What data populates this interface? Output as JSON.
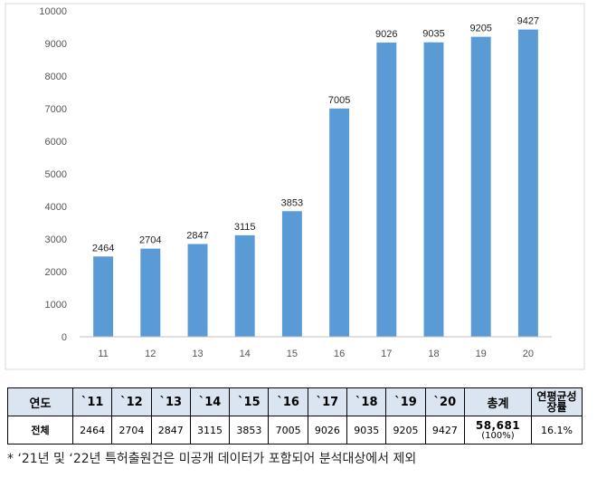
{
  "chart_data": {
    "type": "bar",
    "categories": [
      "11",
      "12",
      "13",
      "14",
      "15",
      "16",
      "17",
      "18",
      "19",
      "20"
    ],
    "values": [
      2464,
      2704,
      2847,
      3115,
      3853,
      7005,
      9026,
      9035,
      9205,
      9427
    ],
    "ylim": [
      0,
      10000
    ],
    "yticks": [
      0,
      1000,
      2000,
      3000,
      4000,
      5000,
      6000,
      7000,
      8000,
      9000,
      10000
    ],
    "grid": false,
    "bar_color": "#5b9bd5"
  },
  "table": {
    "header": {
      "label": "연도",
      "years": [
        "`11",
        "`12",
        "`13",
        "`14",
        "`15",
        "`16",
        "`17",
        "`18",
        "`19",
        "`20"
      ],
      "total": "총계",
      "growth": "연평균성장률"
    },
    "row": {
      "label": "전체",
      "values": [
        "2464",
        "2704",
        "2847",
        "3115",
        "3853",
        "7005",
        "9026",
        "9035",
        "9205",
        "9427"
      ],
      "total": "58,681",
      "total_pct": "(100%)",
      "growth": "16.1%"
    },
    "header_bg": "#dbe5f1"
  },
  "footnote": "* ‘21년 및 ‘22년 특허출원건은 미공개 데이터가 포함되어 분석대상에서 제외"
}
